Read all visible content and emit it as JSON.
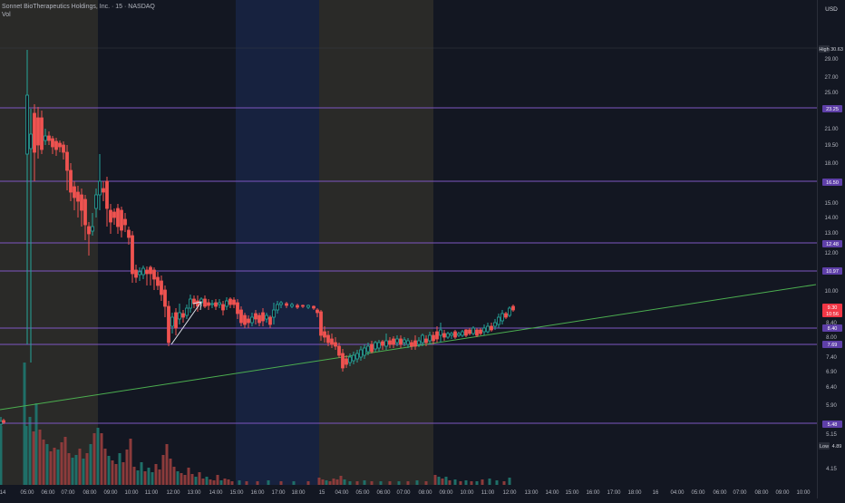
{
  "header": {
    "symbol_line": "Sonnet BioTherapeutics Holdings, Inc. · 15 · NASDAQ",
    "volume_label": "Vol"
  },
  "price_axis": {
    "currency": "USD",
    "ticks": [
      "29.00",
      "27.00",
      "25.00",
      "21.00",
      "19.50",
      "18.00",
      "15.00",
      "14.00",
      "13.00",
      "12.00",
      "10.00",
      "8.40",
      "8.00",
      "7.40",
      "6.90",
      "6.40",
      "5.90",
      "5.15",
      "4.15"
    ],
    "markers": [
      {
        "text": "High",
        "kind": "label"
      },
      {
        "text": "30.63",
        "kind": "plain"
      },
      {
        "text": "23.25",
        "kind": "purple"
      },
      {
        "text": "16.50",
        "kind": "purple"
      },
      {
        "text": "12.48",
        "kind": "purple"
      },
      {
        "text": "10.97",
        "kind": "purple"
      },
      {
        "text": "9.30",
        "kind": "red"
      },
      {
        "text": "10:56",
        "kind": "red"
      },
      {
        "text": "8.40",
        "kind": "purple"
      },
      {
        "text": "7.69",
        "kind": "purple"
      },
      {
        "text": "5.48",
        "kind": "purple"
      },
      {
        "text": "Low",
        "kind": "label"
      },
      {
        "text": "4.89",
        "kind": "plain"
      }
    ]
  },
  "time_axis": {
    "labels": [
      "14",
      "05:00",
      "06:00",
      "07:00",
      "08:00",
      "09:00",
      "10:00",
      "11:00",
      "12:00",
      "13:00",
      "14:00",
      "15:00",
      "16:00",
      "17:00",
      "18:00",
      "15",
      "04:00",
      "05:00",
      "06:00",
      "07:00",
      "08:00",
      "09:00",
      "10:00",
      "11:00",
      "12:00",
      "13:00",
      "14:00",
      "15:00",
      "16:00",
      "17:00",
      "18:00",
      "16",
      "04:00",
      "05:00",
      "06:00",
      "07:00",
      "08:00",
      "09:00",
      "10:00",
      "11"
    ]
  },
  "sessions": [
    {
      "type": "premarket",
      "color": "#2a2a28"
    },
    {
      "type": "regular",
      "color": "#131722"
    },
    {
      "type": "afterhours",
      "color": "#17223f"
    },
    {
      "type": "premarket",
      "color": "#2a2a28"
    }
  ],
  "colors": {
    "up": "#26a69a",
    "down": "#ef5350",
    "level": "#7e57c2",
    "trendline": "#4caf50",
    "arrow": "#e0e3eb"
  }
}
